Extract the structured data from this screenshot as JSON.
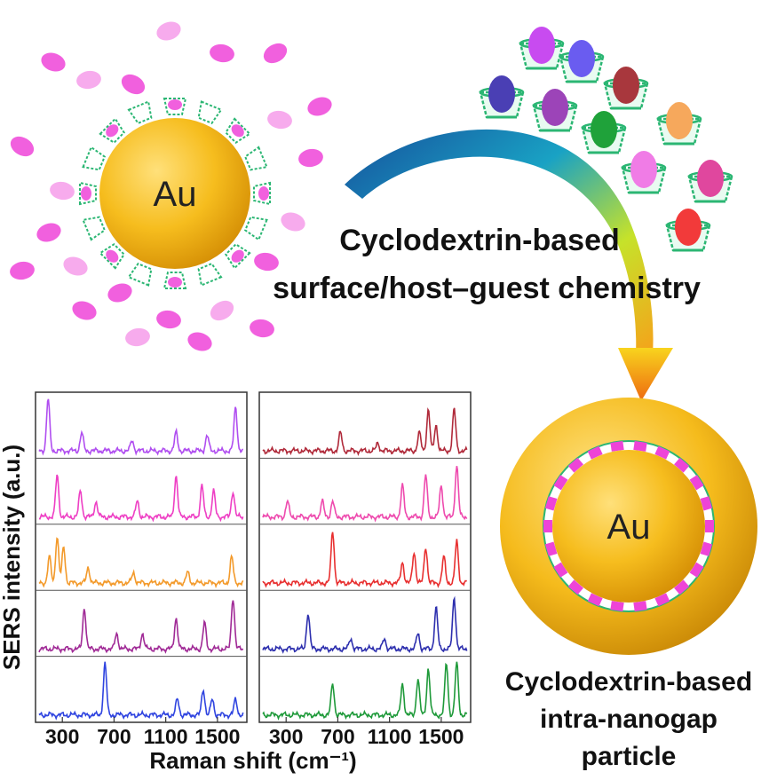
{
  "left_particle": {
    "label": "Au"
  },
  "gap_particle": {
    "label": "Au"
  },
  "captions": {
    "process_line1": "Cyclodextrin-based",
    "process_line2": "surface/host–guest chemistry",
    "product_line1": "Cyclodextrin-based",
    "product_line2": "intra-nanogap",
    "product_line3": "particle"
  },
  "colors": {
    "gold": "#f2b519",
    "gold_dark": "#c98a00",
    "cyclodextrin": "#2bb673",
    "guest_magenta": "#ee44d8"
  },
  "guest_molecule_colors": [
    "#c84bf0",
    "#6a5cf0",
    "#a8373d",
    "#4a3fb4",
    "#9c44b8",
    "#1fa23a",
    "#f6a85c",
    "#f07ce6",
    "#e0479e",
    "#f23a3a"
  ],
  "chart_data": {
    "type": "line",
    "xlabel": "Raman shift (cm⁻¹)",
    "ylabel": "SERS intensity (a.u.)",
    "xlim": [
      120,
      1700
    ],
    "x_ticks": [
      300,
      700,
      1100,
      1500
    ],
    "x_tick_labels": [
      "300",
      "700",
      "1100",
      "1500"
    ],
    "panels": [
      {
        "series": [
          {
            "color": "#b04ef0",
            "peaks": [
              [
                190,
                1.0
              ],
              [
                450,
                0.35
              ],
              [
                840,
                0.2
              ],
              [
                1180,
                0.35
              ],
              [
                1420,
                0.3
              ],
              [
                1640,
                0.85
              ]
            ]
          },
          {
            "color": "#ee3fc4",
            "peaks": [
              [
                260,
                0.8
              ],
              [
                440,
                0.5
              ],
              [
                560,
                0.3
              ],
              [
                880,
                0.3
              ],
              [
                1180,
                0.8
              ],
              [
                1380,
                0.6
              ],
              [
                1470,
                0.5
              ],
              [
                1620,
                0.5
              ]
            ]
          },
          {
            "color": "#f39a2b",
            "peaks": [
              [
                200,
                0.5
              ],
              [
                260,
                0.9
              ],
              [
                310,
                0.7
              ],
              [
                500,
                0.3
              ],
              [
                850,
                0.2
              ],
              [
                1270,
                0.2
              ],
              [
                1610,
                0.5
              ]
            ]
          },
          {
            "color": "#a02a96",
            "peaks": [
              [
                470,
                0.8
              ],
              [
                720,
                0.3
              ],
              [
                920,
                0.3
              ],
              [
                1180,
                0.6
              ],
              [
                1400,
                0.5
              ],
              [
                1620,
                1.0
              ]
            ]
          },
          {
            "color": "#2f44e0",
            "peaks": [
              [
                630,
                1.0
              ],
              [
                1190,
                0.3
              ],
              [
                1390,
                0.5
              ],
              [
                1460,
                0.3
              ],
              [
                1640,
                0.3
              ]
            ]
          }
        ]
      },
      {
        "series": [
          {
            "color": "#b02a3a",
            "peaks": [
              [
                720,
                0.35
              ],
              [
                1010,
                0.15
              ],
              [
                1330,
                0.35
              ],
              [
                1400,
                0.8
              ],
              [
                1460,
                0.5
              ],
              [
                1600,
                0.8
              ]
            ]
          },
          {
            "color": "#ee4aae",
            "peaks": [
              [
                310,
                0.3
              ],
              [
                580,
                0.3
              ],
              [
                660,
                0.3
              ],
              [
                1200,
                0.6
              ],
              [
                1380,
                0.8
              ],
              [
                1500,
                0.6
              ],
              [
                1620,
                1.0
              ]
            ]
          },
          {
            "color": "#e83030",
            "peaks": [
              [
                660,
                1.0
              ],
              [
                1200,
                0.4
              ],
              [
                1290,
                0.6
              ],
              [
                1380,
                0.7
              ],
              [
                1520,
                0.5
              ],
              [
                1620,
                0.8
              ]
            ]
          },
          {
            "color": "#2d2fae",
            "peaks": [
              [
                470,
                0.7
              ],
              [
                800,
                0.2
              ],
              [
                1060,
                0.2
              ],
              [
                1320,
                0.3
              ],
              [
                1460,
                0.8
              ],
              [
                1600,
                1.0
              ]
            ]
          },
          {
            "color": "#1f9a3a",
            "peaks": [
              [
                660,
                0.6
              ],
              [
                1200,
                0.6
              ],
              [
                1320,
                0.7
              ],
              [
                1400,
                0.9
              ],
              [
                1540,
                1.0
              ],
              [
                1620,
                1.0
              ]
            ]
          }
        ]
      }
    ]
  }
}
